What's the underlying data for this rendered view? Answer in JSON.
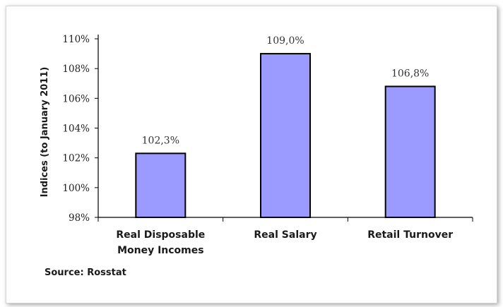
{
  "chart_data": {
    "type": "bar",
    "categories": [
      [
        "Real Disposable",
        "Money Incomes"
      ],
      [
        "Real Salary"
      ],
      [
        "Retail Turnover"
      ]
    ],
    "values": [
      102.3,
      109.0,
      106.8
    ],
    "data_labels": [
      "102,3%",
      "109,0%",
      "106,8%"
    ],
    "ylabel": "Indices (to January 2011)",
    "ylim": [
      98,
      110
    ],
    "yticks": [
      98,
      100,
      102,
      104,
      106,
      108,
      110
    ],
    "ytick_labels": [
      "98%",
      "100%",
      "102%",
      "104%",
      "106%",
      "108%",
      "110%"
    ],
    "grid": false,
    "legend": "none",
    "colors": {
      "bar_fill": "#9a9aff",
      "bar_stroke": "#000000",
      "axis": "#000000"
    }
  },
  "source": "Source: Rosstat"
}
